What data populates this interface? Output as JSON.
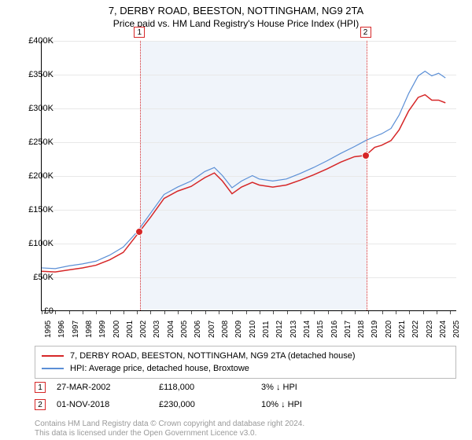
{
  "title": "7, DERBY ROAD, BEESTON, NOTTINGHAM, NG9 2TA",
  "subtitle": "Price paid vs. HM Land Registry's House Price Index (HPI)",
  "chart": {
    "type": "line",
    "x_start": 1995,
    "x_end": 2025.5,
    "ylim": [
      0,
      400000
    ],
    "ytick_step": 50000,
    "ylabels": [
      "£0",
      "£50K",
      "£100K",
      "£150K",
      "£200K",
      "£250K",
      "£300K",
      "£350K",
      "£400K"
    ],
    "xlabels": [
      1995,
      1996,
      1997,
      1998,
      1999,
      2000,
      2001,
      2002,
      2003,
      2004,
      2005,
      2006,
      2007,
      2008,
      2009,
      2010,
      2011,
      2012,
      2013,
      2014,
      2015,
      2016,
      2017,
      2018,
      2019,
      2020,
      2021,
      2022,
      2023,
      2024,
      2025
    ],
    "band_from": 2002.24,
    "band_to": 2018.83,
    "background_color": "#ffffff",
    "grid_color": "#e8e8e8",
    "series": [
      {
        "name": "hpi",
        "label": "HPI: Average price, detached house, Broxtowe",
        "color": "#5b8fd6",
        "width": 1.2,
        "points": [
          [
            1995,
            63000
          ],
          [
            1996,
            62000
          ],
          [
            1997,
            66000
          ],
          [
            1998,
            69000
          ],
          [
            1999,
            73000
          ],
          [
            2000,
            82000
          ],
          [
            2001,
            94000
          ],
          [
            2002,
            116000
          ],
          [
            2003,
            144000
          ],
          [
            2004,
            172000
          ],
          [
            2005,
            183000
          ],
          [
            2006,
            192000
          ],
          [
            2007,
            206000
          ],
          [
            2007.7,
            212000
          ],
          [
            2008.3,
            200000
          ],
          [
            2009,
            182000
          ],
          [
            2009.7,
            192000
          ],
          [
            2010.5,
            200000
          ],
          [
            2011,
            195000
          ],
          [
            2012,
            192000
          ],
          [
            2013,
            195000
          ],
          [
            2014,
            203000
          ],
          [
            2015,
            212000
          ],
          [
            2016,
            222000
          ],
          [
            2017,
            233000
          ],
          [
            2018,
            243000
          ],
          [
            2018.83,
            252000
          ],
          [
            2019.5,
            258000
          ],
          [
            2020,
            262000
          ],
          [
            2020.7,
            270000
          ],
          [
            2021.3,
            290000
          ],
          [
            2022,
            322000
          ],
          [
            2022.7,
            348000
          ],
          [
            2023.2,
            355000
          ],
          [
            2023.7,
            348000
          ],
          [
            2024.2,
            352000
          ],
          [
            2024.7,
            345000
          ]
        ]
      },
      {
        "name": "price_paid",
        "label": "7, DERBY ROAD, BEESTON, NOTTINGHAM, NG9 2TA (detached house)",
        "color": "#d62728",
        "width": 1.5,
        "points": [
          [
            1995,
            58000
          ],
          [
            1996,
            57000
          ],
          [
            1997,
            60000
          ],
          [
            1998,
            63000
          ],
          [
            1999,
            67000
          ],
          [
            2000,
            75000
          ],
          [
            2001,
            86000
          ],
          [
            2002.24,
            118000
          ],
          [
            2003,
            138000
          ],
          [
            2004,
            166000
          ],
          [
            2005,
            177000
          ],
          [
            2006,
            184000
          ],
          [
            2007,
            197000
          ],
          [
            2007.7,
            204000
          ],
          [
            2008.3,
            192000
          ],
          [
            2009,
            173000
          ],
          [
            2009.7,
            183000
          ],
          [
            2010.5,
            190000
          ],
          [
            2011,
            186000
          ],
          [
            2012,
            183000
          ],
          [
            2013,
            186000
          ],
          [
            2014,
            193000
          ],
          [
            2015,
            201000
          ],
          [
            2016,
            210000
          ],
          [
            2017,
            220000
          ],
          [
            2018,
            228000
          ],
          [
            2018.83,
            230000
          ],
          [
            2019.5,
            242000
          ],
          [
            2020,
            245000
          ],
          [
            2020.7,
            252000
          ],
          [
            2021.3,
            268000
          ],
          [
            2022,
            296000
          ],
          [
            2022.7,
            316000
          ],
          [
            2023.2,
            320000
          ],
          [
            2023.7,
            312000
          ],
          [
            2024.2,
            312000
          ],
          [
            2024.7,
            308000
          ]
        ]
      }
    ],
    "markers": [
      {
        "n": "1",
        "x": 2002.24,
        "y": 118000,
        "above": true
      },
      {
        "n": "2",
        "x": 2018.83,
        "y": 230000,
        "above": true
      }
    ]
  },
  "legend": {
    "rows": [
      {
        "color": "#d62728",
        "label": "7, DERBY ROAD, BEESTON, NOTTINGHAM, NG9 2TA (detached house)"
      },
      {
        "color": "#5b8fd6",
        "label": "HPI: Average price, detached house, Broxtowe"
      }
    ]
  },
  "marker_details": [
    {
      "n": "1",
      "date": "27-MAR-2002",
      "price": "£118,000",
      "delta": "3% ↓ HPI"
    },
    {
      "n": "2",
      "date": "01-NOV-2018",
      "price": "£230,000",
      "delta": "10% ↓ HPI"
    }
  ],
  "attribution": {
    "line1": "Contains HM Land Registry data © Crown copyright and database right 2024.",
    "line2": "This data is licensed under the Open Government Licence v3.0."
  }
}
